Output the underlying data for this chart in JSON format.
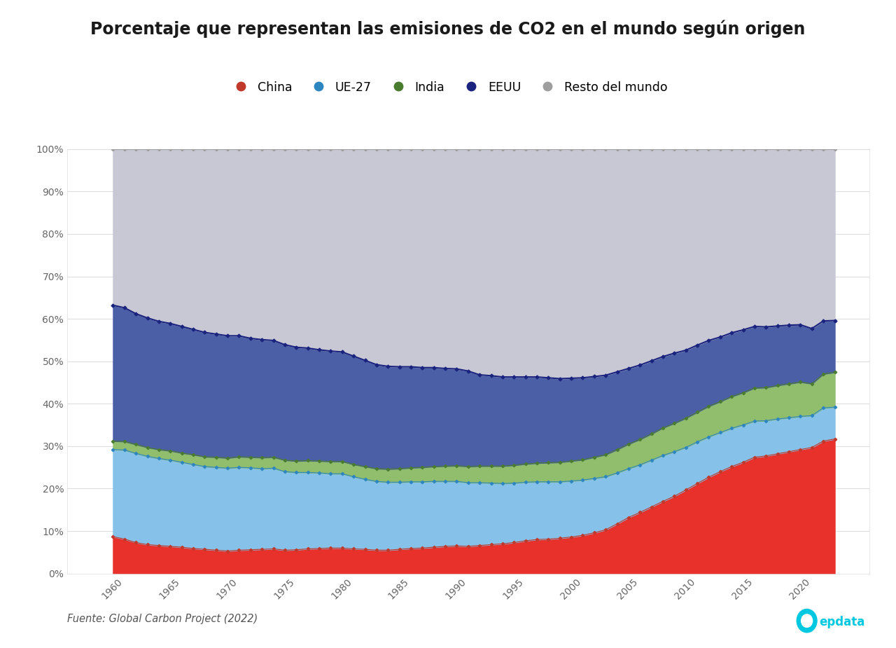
{
  "title": "Porcentaje que representan las emisiones de CO2 en el mundo según origen",
  "source": "Fuente: Global Carbon Project (2022)",
  "years": [
    1959,
    1960,
    1961,
    1962,
    1963,
    1964,
    1965,
    1966,
    1967,
    1968,
    1969,
    1970,
    1971,
    1972,
    1973,
    1974,
    1975,
    1976,
    1977,
    1978,
    1979,
    1980,
    1981,
    1982,
    1983,
    1984,
    1985,
    1986,
    1987,
    1988,
    1989,
    1990,
    1991,
    1992,
    1993,
    1994,
    1995,
    1996,
    1997,
    1998,
    1999,
    2000,
    2001,
    2002,
    2003,
    2004,
    2005,
    2006,
    2007,
    2008,
    2009,
    2010,
    2011,
    2012,
    2013,
    2014,
    2015,
    2016,
    2017,
    2018,
    2019,
    2020,
    2021,
    2022
  ],
  "china": [
    8.7,
    8.1,
    7.3,
    6.8,
    6.6,
    6.4,
    6.2,
    5.9,
    5.7,
    5.5,
    5.3,
    5.5,
    5.6,
    5.7,
    5.8,
    5.5,
    5.6,
    5.8,
    5.9,
    6.0,
    6.0,
    5.8,
    5.7,
    5.5,
    5.5,
    5.7,
    5.9,
    6.0,
    6.2,
    6.4,
    6.5,
    6.4,
    6.6,
    6.8,
    7.0,
    7.3,
    7.7,
    8.0,
    8.1,
    8.3,
    8.6,
    9.0,
    9.6,
    10.3,
    11.7,
    13.2,
    14.4,
    15.7,
    17.0,
    18.2,
    19.7,
    21.2,
    22.7,
    24.0,
    25.2,
    26.2,
    27.4,
    27.7,
    28.2,
    28.7,
    29.2,
    29.7,
    31.2,
    31.7
  ],
  "ue27": [
    20.5,
    21.0,
    21.0,
    20.8,
    20.5,
    20.3,
    20.0,
    19.8,
    19.5,
    19.5,
    19.5,
    19.5,
    19.3,
    19.0,
    19.0,
    18.5,
    18.2,
    18.0,
    17.8,
    17.5,
    17.5,
    17.0,
    16.5,
    16.2,
    16.0,
    15.8,
    15.7,
    15.6,
    15.5,
    15.3,
    15.2,
    15.0,
    14.8,
    14.5,
    14.2,
    14.0,
    13.8,
    13.6,
    13.5,
    13.3,
    13.2,
    13.0,
    12.8,
    12.5,
    12.0,
    11.5,
    11.2,
    11.0,
    10.8,
    10.5,
    10.0,
    9.8,
    9.5,
    9.2,
    9.0,
    8.8,
    8.5,
    8.3,
    8.2,
    8.0,
    7.8,
    7.5,
    7.8,
    7.5
  ],
  "india": [
    2.0,
    2.0,
    2.1,
    2.1,
    2.1,
    2.2,
    2.2,
    2.3,
    2.3,
    2.4,
    2.4,
    2.5,
    2.5,
    2.6,
    2.6,
    2.7,
    2.7,
    2.8,
    2.8,
    2.9,
    2.9,
    2.9,
    3.0,
    3.0,
    3.1,
    3.2,
    3.3,
    3.4,
    3.5,
    3.6,
    3.7,
    3.8,
    3.9,
    4.0,
    4.1,
    4.2,
    4.3,
    4.4,
    4.5,
    4.6,
    4.7,
    4.8,
    5.0,
    5.2,
    5.5,
    5.8,
    6.0,
    6.2,
    6.5,
    6.7,
    6.9,
    7.0,
    7.2,
    7.3,
    7.5,
    7.6,
    7.8,
    7.8,
    7.9,
    8.0,
    8.1,
    7.5,
    8.0,
    8.2
  ],
  "eeuu": [
    32.0,
    31.5,
    30.8,
    30.5,
    30.2,
    30.0,
    29.8,
    29.5,
    29.3,
    29.0,
    28.8,
    28.5,
    28.0,
    27.8,
    27.5,
    27.2,
    26.8,
    26.5,
    26.2,
    26.0,
    25.8,
    25.5,
    25.0,
    24.5,
    24.2,
    24.0,
    23.8,
    23.5,
    23.3,
    23.0,
    22.8,
    22.5,
    21.5,
    21.3,
    21.0,
    20.8,
    20.5,
    20.3,
    20.0,
    19.7,
    19.5,
    19.3,
    19.0,
    18.7,
    18.3,
    17.8,
    17.5,
    17.2,
    16.8,
    16.5,
    16.0,
    15.8,
    15.5,
    15.2,
    15.0,
    14.8,
    14.5,
    14.3,
    14.0,
    13.8,
    13.5,
    13.0,
    12.5,
    12.2
  ],
  "colors": {
    "china": "#E8312A",
    "ue27": "#85C1E9",
    "india": "#90BE6D",
    "eeuu": "#4A5FA5",
    "resto": "#C8C8D4"
  },
  "fill_alpha": {
    "china": 1.0,
    "ue27": 1.0,
    "india": 1.0,
    "eeuu": 1.0,
    "resto": 1.0
  },
  "line_colors": {
    "china": "#C0392B",
    "ue27": "#2E86C1",
    "india": "#4A7C2F",
    "eeuu": "#1A237E",
    "resto": "#9E9E9E"
  },
  "background_color": "#FFFFFF",
  "xlim": [
    1955,
    2025
  ],
  "ylim": [
    0,
    100
  ],
  "xticks": [
    1955,
    1960,
    1965,
    1970,
    1975,
    1980,
    1985,
    1990,
    1995,
    2000,
    2005,
    2010,
    2015,
    2020,
    2025
  ],
  "yticks": [
    0,
    10,
    20,
    30,
    40,
    50,
    60,
    70,
    80,
    90,
    100
  ],
  "ytick_labels": [
    "0%",
    "10%",
    "20%",
    "30%",
    "40%",
    "50%",
    "60%",
    "70%",
    "80%",
    "90%",
    "100%"
  ]
}
